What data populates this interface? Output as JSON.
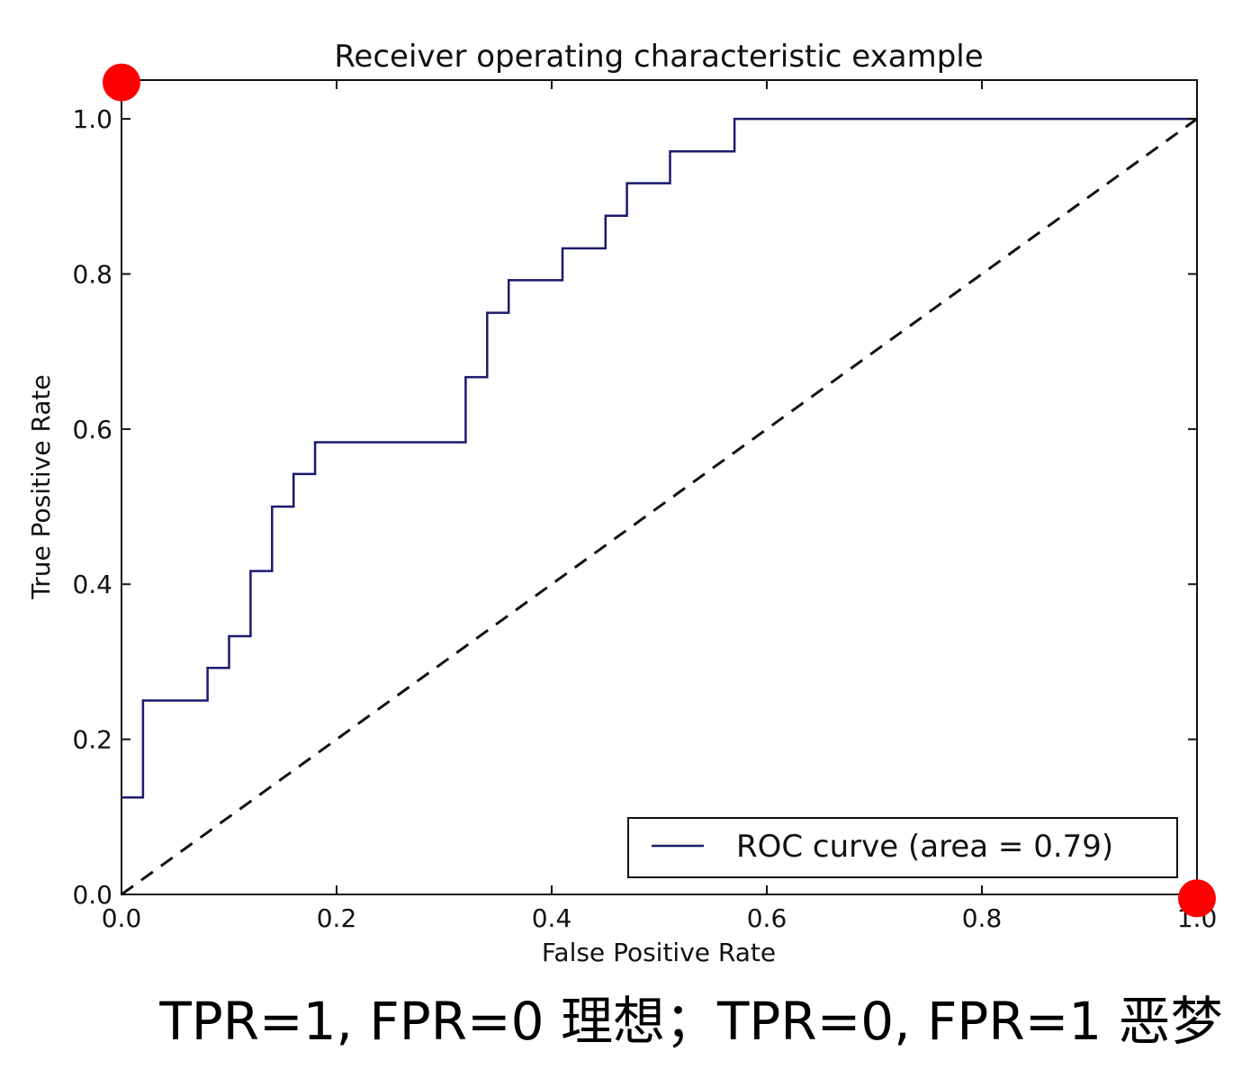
{
  "chart_data": {
    "type": "line",
    "title": "Receiver operating characteristic example",
    "xlabel": "False Positive Rate",
    "ylabel": "True Positive Rate",
    "xlim": [
      0,
      1
    ],
    "ylim": [
      0,
      1.05
    ],
    "xticks": [
      "0.0",
      "0.2",
      "0.4",
      "0.6",
      "0.8",
      "1.0"
    ],
    "yticks": [
      "0.0",
      "0.2",
      "0.4",
      "0.6",
      "0.8",
      "1.0"
    ],
    "grid": false,
    "legend_position": "lower-right",
    "series": [
      {
        "name": "ROC curve (area = 0.79)",
        "style": "step",
        "color": "#1a1a6e",
        "x": [
          0.0,
          0.02,
          0.02,
          0.08,
          0.08,
          0.1,
          0.1,
          0.12,
          0.12,
          0.14,
          0.14,
          0.16,
          0.16,
          0.18,
          0.18,
          0.32,
          0.32,
          0.34,
          0.34,
          0.36,
          0.36,
          0.41,
          0.41,
          0.45,
          0.45,
          0.47,
          0.47,
          0.51,
          0.51,
          0.57,
          0.57,
          1.0
        ],
        "y": [
          0.125,
          0.125,
          0.25,
          0.25,
          0.292,
          0.292,
          0.333,
          0.333,
          0.417,
          0.417,
          0.5,
          0.5,
          0.542,
          0.542,
          0.583,
          0.583,
          0.667,
          0.667,
          0.75,
          0.75,
          0.792,
          0.792,
          0.833,
          0.833,
          0.875,
          0.875,
          0.917,
          0.917,
          0.958,
          0.958,
          1.0,
          1.0
        ]
      },
      {
        "style": "dashed",
        "color": "#111111",
        "x": [
          0.0,
          1.0
        ],
        "y": [
          0.0,
          1.0
        ]
      }
    ],
    "markers": [
      {
        "x": 0.0,
        "y": 1.047,
        "color": "#ff0000"
      },
      {
        "x": 1.0,
        "y": -0.005,
        "color": "#ff0000"
      }
    ]
  },
  "caption": "TPR=1, FPR=0 理想；TPR=0, FPR=1 恶梦"
}
